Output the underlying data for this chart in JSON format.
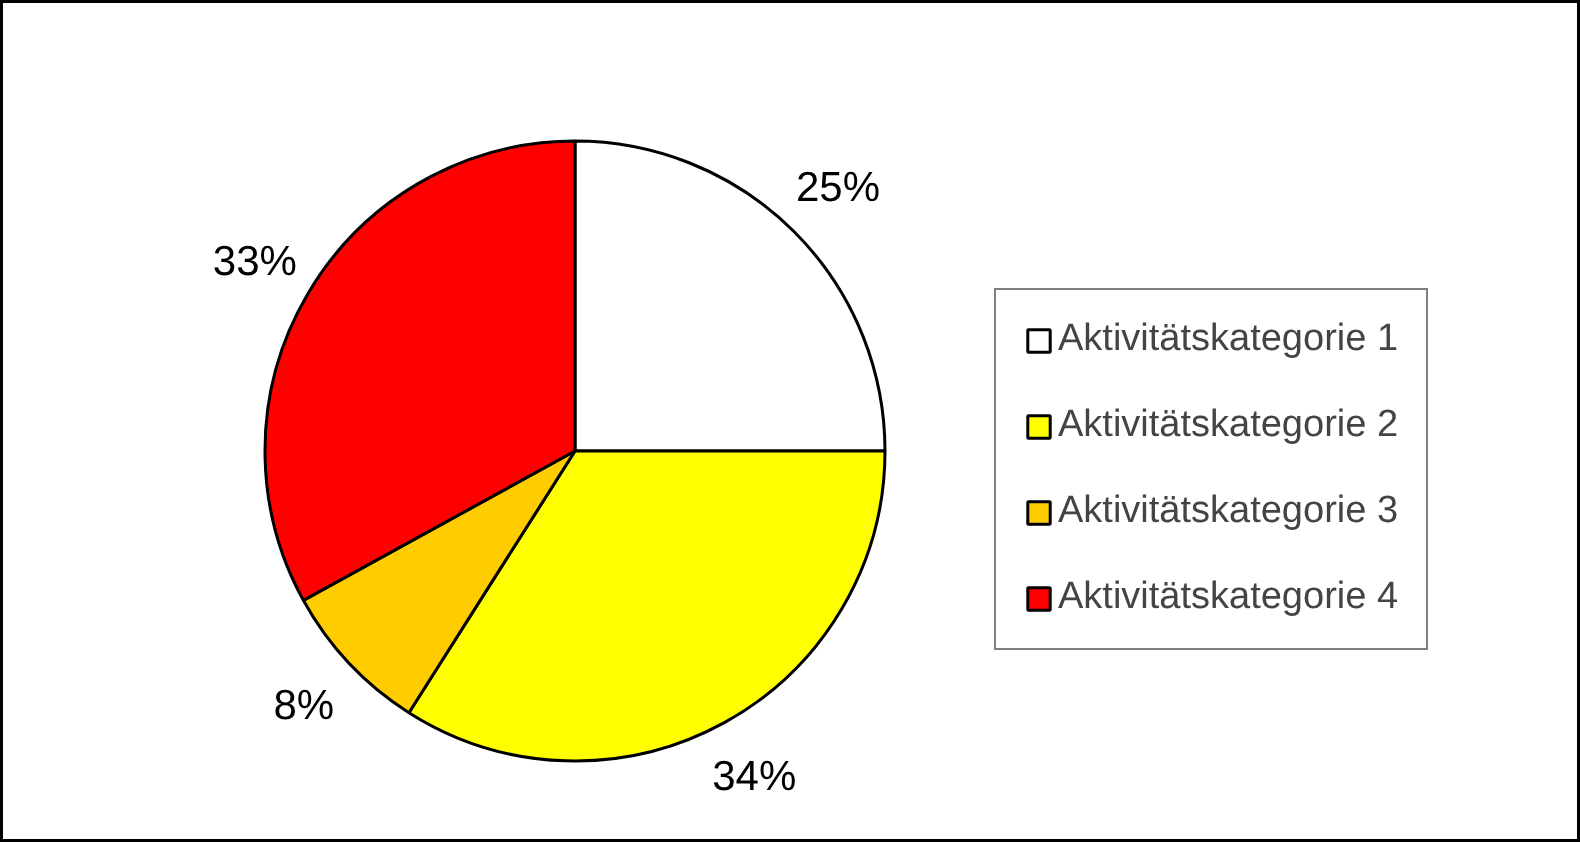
{
  "chart_data": {
    "type": "pie",
    "categories": [
      "Aktivitätskategorie 1",
      "Aktivitätskategorie 2",
      "Aktivitätskategorie 3",
      "Aktivitätskategorie 4"
    ],
    "values": [
      25,
      34,
      8,
      33
    ],
    "colors": [
      "#ffffff",
      "#ffff00",
      "#ffcc00",
      "#ff0000"
    ],
    "value_labels": [
      "25%",
      "34%",
      "8%",
      "33%"
    ],
    "legend": "right"
  }
}
